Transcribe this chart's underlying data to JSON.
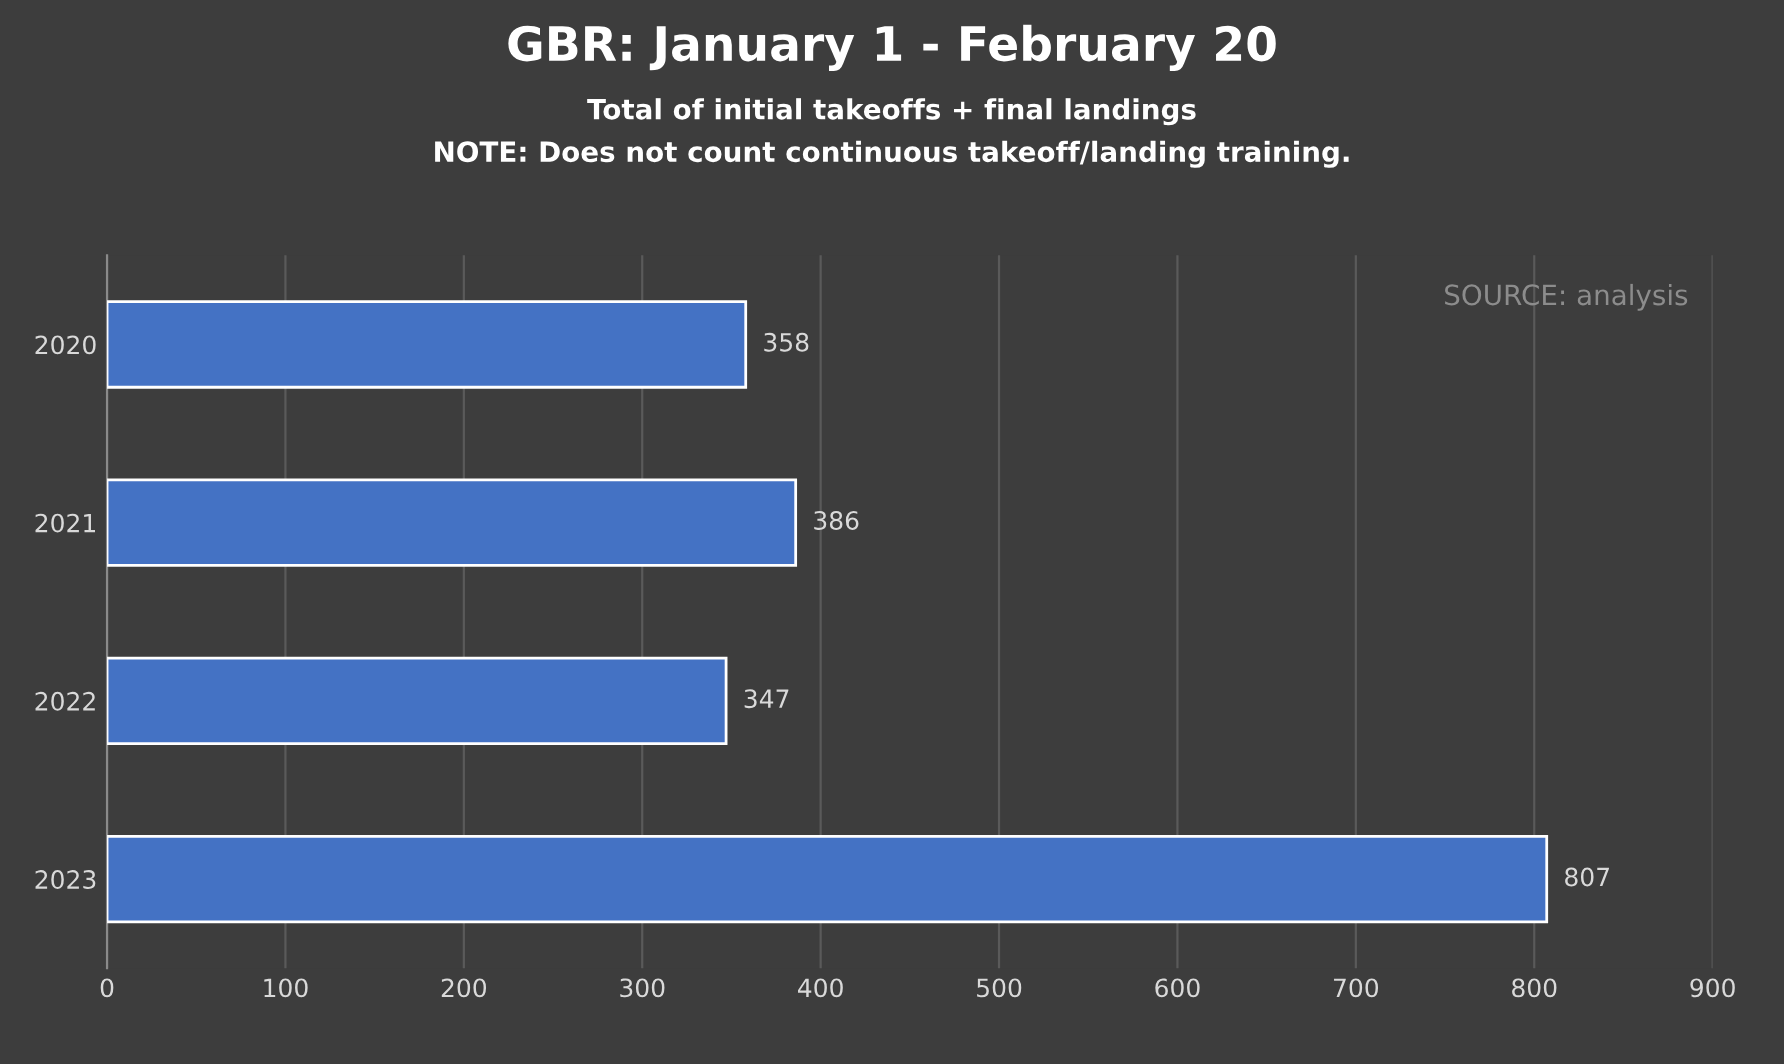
{
  "chart_data": {
    "type": "bar",
    "orientation": "horizontal",
    "title": "GBR: January 1 - February 20",
    "subtitle": "Total of initial takeoffs + final landings",
    "annotations": [
      "NOTE: Does not count continuous takeoff/landing training.",
      "SOURCE: analysis"
    ],
    "categories": [
      "2020",
      "2021",
      "2022",
      "2023"
    ],
    "values": [
      358,
      386,
      347,
      807
    ],
    "color": "#4472c4",
    "xlim": [
      0,
      900
    ],
    "xticks": [
      0,
      100,
      200,
      300,
      400,
      500,
      600,
      700,
      800,
      900
    ],
    "grid": "x",
    "data_labels": true
  }
}
